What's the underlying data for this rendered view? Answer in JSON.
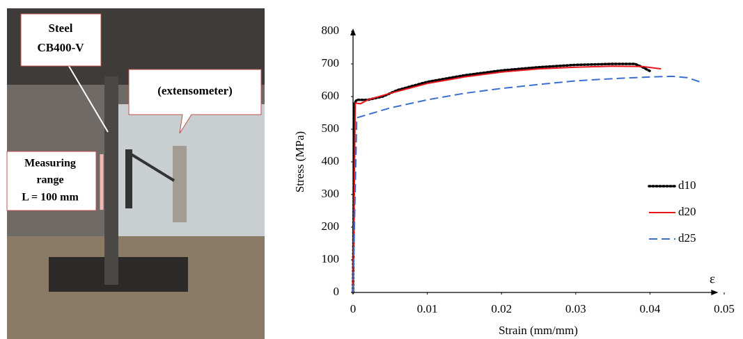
{
  "photo": {
    "labels": {
      "steel": [
        "Steel",
        "CB400-V"
      ],
      "extensometer": "(extensometer)",
      "range": [
        "Measuring",
        "range",
        "L = 100 mm"
      ]
    }
  },
  "chart_data": {
    "type": "line",
    "xlabel": "Strain (mm/mm)",
    "ylabel": "Stress (MPa)",
    "annotation": "ε",
    "xlim": [
      0,
      0.05
    ],
    "xticks": [
      0,
      0.01,
      0.02,
      0.03,
      0.04,
      0.05
    ],
    "ylim": [
      0,
      800
    ],
    "yticks": [
      0,
      100,
      200,
      300,
      400,
      500,
      600,
      700,
      800
    ],
    "grid": false,
    "legend": "right",
    "series": [
      {
        "name": "d10",
        "color": "#000000",
        "style": "dotted",
        "x": [
          0,
          0.0002,
          0.0005,
          0.002,
          0.003,
          0.004,
          0.006,
          0.01,
          0.015,
          0.02,
          0.025,
          0.03,
          0.035,
          0.038,
          0.039,
          0.04
        ],
        "values": [
          0,
          580,
          590,
          590,
          595,
          600,
          620,
          645,
          665,
          680,
          690,
          697,
          700,
          700,
          690,
          678
        ]
      },
      {
        "name": "d20",
        "color": "#e8161b",
        "style": "solid",
        "x": [
          0,
          0.0003,
          0.001,
          0.002,
          0.005,
          0.01,
          0.015,
          0.02,
          0.025,
          0.03,
          0.035,
          0.039,
          0.0415
        ],
        "values": [
          0,
          580,
          578,
          590,
          610,
          640,
          660,
          675,
          685,
          690,
          693,
          692,
          685
        ]
      },
      {
        "name": "d25",
        "color": "#3a6fd0",
        "style": "dashed",
        "x": [
          0,
          0.0005,
          0.002,
          0.005,
          0.01,
          0.015,
          0.02,
          0.025,
          0.03,
          0.035,
          0.04,
          0.043,
          0.045,
          0.047
        ],
        "values": [
          0,
          535,
          545,
          565,
          590,
          610,
          625,
          637,
          648,
          655,
          660,
          662,
          658,
          643
        ]
      }
    ]
  }
}
